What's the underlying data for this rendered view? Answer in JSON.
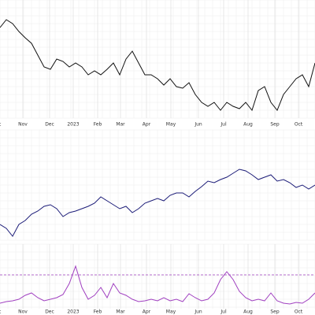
{
  "chart_data": [
    {
      "type": "line",
      "xlim": [
        0,
        400
      ],
      "ylim": [
        0,
        150
      ],
      "grid": true,
      "xticks": [
        {
          "value": -4,
          "label": "Oct"
        },
        {
          "value": 29,
          "label": "Nov"
        },
        {
          "value": 63,
          "label": "Dec"
        },
        {
          "value": 93,
          "label": "2023"
        },
        {
          "value": 124,
          "label": "Feb"
        },
        {
          "value": 153,
          "label": "Mar"
        },
        {
          "value": 186,
          "label": "Apr"
        },
        {
          "value": 217,
          "label": "May"
        },
        {
          "value": 252,
          "label": "Jun"
        },
        {
          "value": 284,
          "label": "Jul"
        },
        {
          "value": 315,
          "label": "Aug"
        },
        {
          "value": 349,
          "label": "Sep"
        },
        {
          "value": 379,
          "label": "Oct"
        }
      ],
      "x": [
        0,
        8,
        16,
        24,
        32,
        40,
        48,
        56,
        64,
        72,
        80,
        88,
        96,
        104,
        112,
        120,
        128,
        136,
        144,
        152,
        160,
        168,
        176,
        184,
        192,
        200,
        208,
        216,
        224,
        232,
        240,
        248,
        256,
        264,
        272,
        280,
        288,
        296,
        304,
        312,
        320,
        328,
        336,
        344,
        352,
        360,
        368,
        376,
        384,
        392,
        400
      ],
      "series": [
        {
          "color": "#111111",
          "values": [
            115,
            125,
            120,
            110,
            102,
            95,
            80,
            65,
            62,
            75,
            72,
            65,
            70,
            65,
            55,
            60,
            55,
            62,
            70,
            55,
            75,
            85,
            70,
            55,
            55,
            50,
            42,
            50,
            40,
            38,
            45,
            30,
            20,
            15,
            20,
            10,
            20,
            15,
            12,
            20,
            10,
            35,
            40,
            20,
            10,
            30,
            40,
            50,
            55,
            40,
            70
          ]
        }
      ]
    },
    {
      "type": "line",
      "xlim": [
        0,
        400
      ],
      "ylim": [
        0,
        140
      ],
      "grid": true,
      "x": [
        0,
        8,
        16,
        24,
        32,
        40,
        48,
        56,
        64,
        72,
        80,
        88,
        96,
        104,
        112,
        120,
        128,
        136,
        144,
        152,
        160,
        168,
        176,
        184,
        192,
        200,
        208,
        216,
        224,
        232,
        240,
        248,
        256,
        264,
        272,
        280,
        288,
        296,
        304,
        312,
        320,
        328,
        336,
        344,
        352,
        360,
        368,
        376,
        384,
        392,
        400
      ],
      "series": [
        {
          "color": "#1c1c78",
          "values": [
            20,
            15,
            5,
            20,
            25,
            33,
            37,
            43,
            45,
            40,
            30,
            35,
            37,
            40,
            43,
            47,
            55,
            50,
            45,
            40,
            43,
            35,
            40,
            47,
            50,
            53,
            50,
            57,
            60,
            60,
            55,
            62,
            68,
            75,
            73,
            77,
            80,
            85,
            90,
            88,
            83,
            77,
            80,
            83,
            75,
            77,
            73,
            67,
            70,
            65,
            70
          ]
        }
      ]
    },
    {
      "type": "line",
      "xlim": [
        0,
        400
      ],
      "ylim": [
        0,
        82
      ],
      "grid": true,
      "reference_line": 43,
      "reference_color": "#a040c0",
      "xticks": [
        {
          "value": -4,
          "label": "Oct"
        },
        {
          "value": 29,
          "label": "Nov"
        },
        {
          "value": 63,
          "label": "Dec"
        },
        {
          "value": 93,
          "label": "2023"
        },
        {
          "value": 124,
          "label": "Feb"
        },
        {
          "value": 153,
          "label": "Mar"
        },
        {
          "value": 186,
          "label": "Apr"
        },
        {
          "value": 217,
          "label": "May"
        },
        {
          "value": 252,
          "label": "Jun"
        },
        {
          "value": 284,
          "label": "Jul"
        },
        {
          "value": 315,
          "label": "Aug"
        },
        {
          "value": 349,
          "label": "Sep"
        },
        {
          "value": 379,
          "label": "Oct"
        }
      ],
      "x": [
        0,
        8,
        16,
        24,
        32,
        40,
        48,
        56,
        64,
        72,
        80,
        88,
        96,
        104,
        112,
        120,
        128,
        136,
        144,
        152,
        160,
        168,
        176,
        184,
        192,
        200,
        208,
        216,
        224,
        232,
        240,
        248,
        256,
        264,
        272,
        280,
        288,
        296,
        304,
        312,
        320,
        328,
        336,
        344,
        352,
        360,
        368,
        376,
        384,
        392,
        400
      ],
      "series": [
        {
          "color": "#a040c0",
          "values": [
            7,
            9,
            10,
            12,
            17,
            20,
            14,
            10,
            12,
            14,
            18,
            32,
            54,
            27,
            12,
            17,
            27,
            14,
            32,
            20,
            17,
            12,
            9,
            10,
            12,
            10,
            14,
            10,
            12,
            9,
            19,
            14,
            10,
            12,
            20,
            37,
            47,
            37,
            22,
            14,
            10,
            12,
            10,
            20,
            10,
            7,
            6,
            8,
            7,
            12,
            20
          ]
        }
      ]
    }
  ]
}
